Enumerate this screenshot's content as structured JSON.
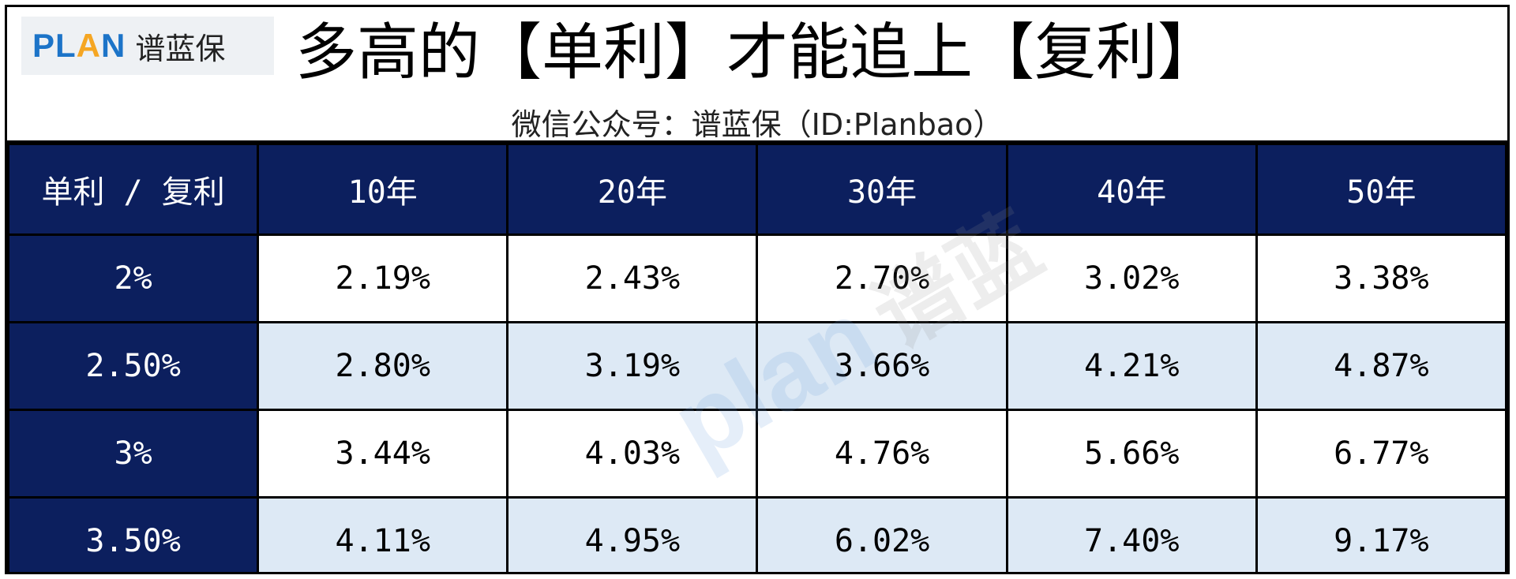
{
  "logo": {
    "brand_p": "PL",
    "brand_a": "A",
    "brand_n": "N",
    "brand_cn": "谱蓝保"
  },
  "header": {
    "title": "多高的【单利】才能追上【复利】",
    "subtitle": "微信公众号：谱蓝保（ID:Planbao）"
  },
  "watermark": {
    "latin": "plan",
    "cn": "谱蓝"
  },
  "colors": {
    "header_bg": "#0c1f5e",
    "row_alt_bg": "#dde9f5",
    "logo_blue": "#1c74c8",
    "logo_orange": "#f5a623"
  },
  "chart_data": {
    "type": "table",
    "title": "多高的【单利】才能追上【复利】",
    "corner_label": "单利 / 复利",
    "columns": [
      "10年",
      "20年",
      "30年",
      "40年",
      "50年"
    ],
    "rows": [
      {
        "label": "2%",
        "values": [
          "2.19%",
          "2.43%",
          "2.70%",
          "3.02%",
          "3.38%"
        ]
      },
      {
        "label": "2.50%",
        "values": [
          "2.80%",
          "3.19%",
          "3.66%",
          "4.21%",
          "4.87%"
        ]
      },
      {
        "label": "3%",
        "values": [
          "3.44%",
          "4.03%",
          "4.76%",
          "5.66%",
          "6.77%"
        ]
      },
      {
        "label": "3.50%",
        "values": [
          "4.11%",
          "4.95%",
          "6.02%",
          "7.40%",
          "9.17%"
        ]
      }
    ]
  }
}
